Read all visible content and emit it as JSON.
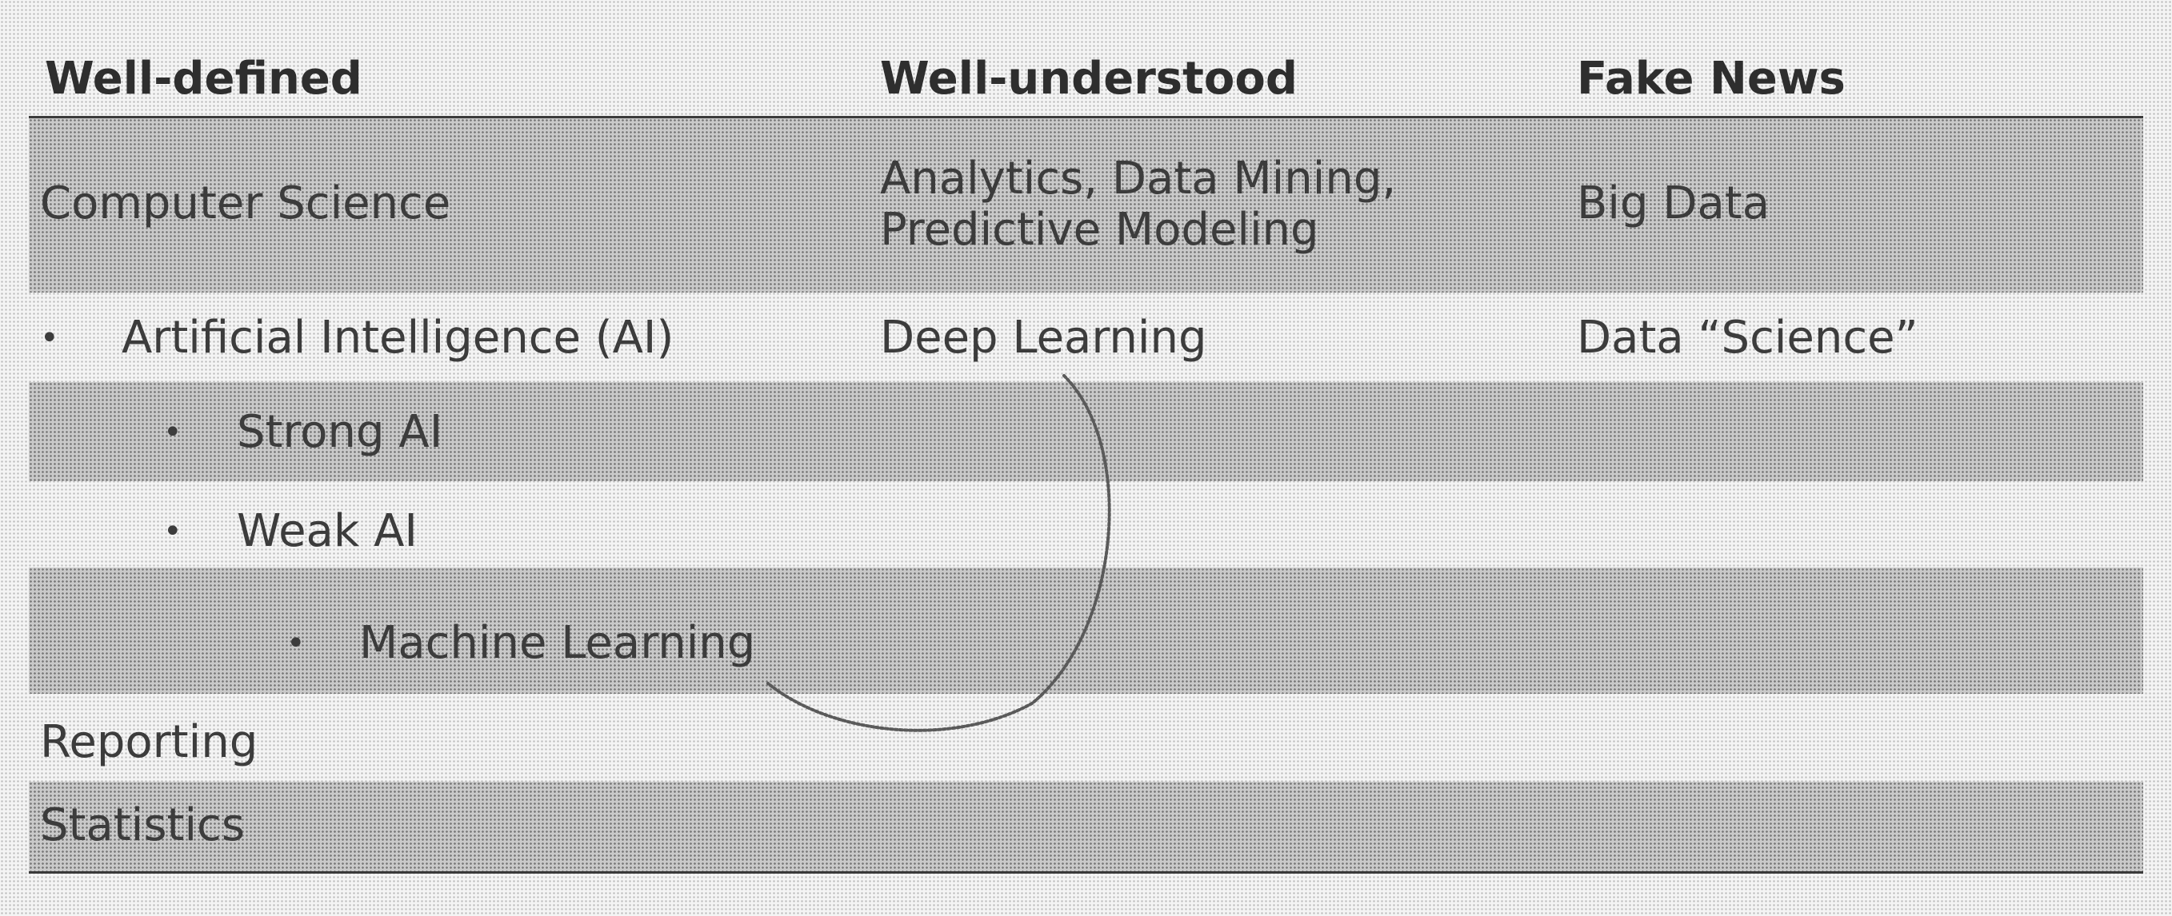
{
  "header": {
    "col1": "Well-defined",
    "col2": "Well-understood",
    "col3": "Fake News"
  },
  "rows": [
    {
      "col1": "Computer Science",
      "col2_line1": "Analytics, Data Mining,",
      "col2_line2": "Predictive Modeling",
      "col3": "Big Data"
    },
    {
      "col1": "Artificial Intelligence (AI)",
      "col2": "Deep Learning",
      "col3": "Data “Science”"
    },
    {
      "col1": "Strong AI"
    },
    {
      "col1": "Weak AI"
    },
    {
      "col1": "Machine Learning"
    },
    {
      "col1": "Reporting"
    },
    {
      "col1": "Statistics"
    }
  ],
  "bullets": {
    "level1": "•",
    "level2": "•",
    "level3": "•"
  },
  "colors": {
    "rule": "#3a3a3a",
    "shade": "#c9c9c9",
    "text": "#3c3c3c"
  }
}
